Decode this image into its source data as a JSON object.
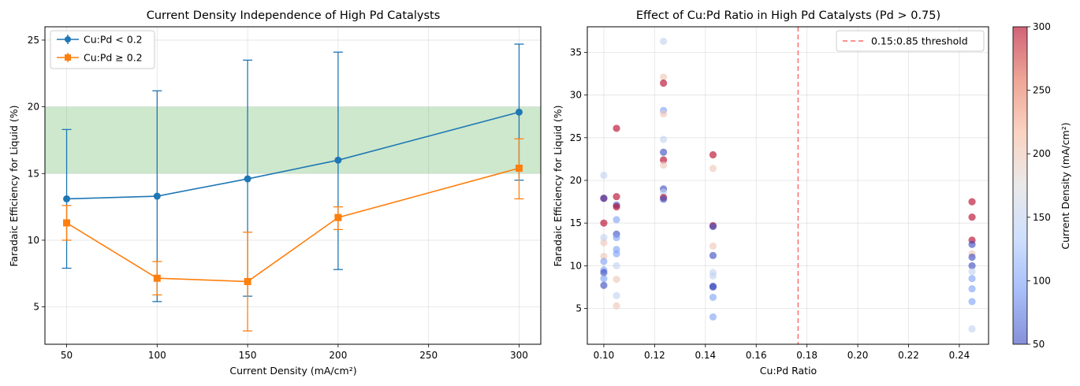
{
  "colors": {
    "blue": "#1f77b4",
    "orange": "#ff7f0e",
    "band": "#2ca02c",
    "threshold": "#ff6b6b",
    "cmap": [
      "#3b4cc0",
      "#7396f5",
      "#b0cbfc",
      "#dddcdc",
      "#f7b89c",
      "#e46e56",
      "#b40426"
    ]
  },
  "chart_data": [
    {
      "type": "line",
      "title": "Current Density Independence of High Pd Catalysts",
      "xlabel": "Current Density (mA/cm²)",
      "ylabel": "Faradaic Efficiency for Liquid (%)",
      "xlim": [
        38,
        312
      ],
      "ylim": [
        2.2,
        26
      ],
      "xticks": [
        50,
        100,
        150,
        200,
        250,
        300
      ],
      "yticks": [
        5,
        10,
        15,
        20,
        25
      ],
      "grid": true,
      "legend_position": "top-left",
      "shaded_band": {
        "y0": 15,
        "y1": 20
      },
      "series": [
        {
          "name": "Cu:Pd < 0.2",
          "marker": "circle",
          "x": [
            50,
            100,
            150,
            200,
            300
          ],
          "y": [
            13.1,
            13.3,
            14.6,
            16.0,
            19.6
          ],
          "err_low": [
            7.9,
            5.4,
            5.8,
            7.8,
            14.5
          ],
          "err_high": [
            18.3,
            21.2,
            23.5,
            24.1,
            24.7
          ]
        },
        {
          "name": "Cu:Pd ≥ 0.2",
          "marker": "square",
          "x": [
            50,
            100,
            150,
            200,
            300
          ],
          "y": [
            11.3,
            7.15,
            6.9,
            11.7,
            15.4
          ],
          "err_low": [
            10.0,
            5.9,
            3.2,
            10.8,
            13.1
          ],
          "err_high": [
            12.6,
            8.4,
            10.6,
            12.5,
            17.6
          ]
        }
      ]
    },
    {
      "type": "scatter",
      "title": "Effect of Cu:Pd Ratio in High Pd Catalysts (Pd > 0.75)",
      "xlabel": "Cu:Pd Ratio",
      "ylabel": "Faradaic Efficiency for Liquid (%)",
      "xlim": [
        0.0935,
        0.2515
      ],
      "ylim": [
        0.8,
        38
      ],
      "xticks": [
        0.1,
        0.12,
        0.14,
        0.16,
        0.18,
        0.2,
        0.22,
        0.24
      ],
      "xtick_labels": [
        "0.10",
        "0.12",
        "0.14",
        "0.16",
        "0.18",
        "0.20",
        "0.22",
        "0.24"
      ],
      "yticks": [
        5,
        10,
        15,
        20,
        25,
        30,
        35
      ],
      "grid": true,
      "threshold": {
        "x": 0.1765,
        "label": "0.15:0.85 threshold"
      },
      "legend_position": "top-right",
      "colorbar": {
        "label": "Current Density (mA/cm²)",
        "range": [
          50,
          300
        ],
        "ticks": [
          50,
          100,
          150,
          200,
          250,
          300
        ]
      },
      "points": [
        [
          0.1,
          17.9,
          300
        ],
        [
          0.1,
          17.9,
          50
        ],
        [
          0.1,
          15.0,
          300
        ],
        [
          0.1,
          12.7,
          200
        ],
        [
          0.1,
          11.1,
          200
        ],
        [
          0.1,
          13.3,
          150
        ],
        [
          0.1,
          10.5,
          100
        ],
        [
          0.1,
          9.5,
          100
        ],
        [
          0.1,
          9.2,
          50
        ],
        [
          0.1,
          8.5,
          100
        ],
        [
          0.1,
          7.7,
          50
        ],
        [
          0.1,
          20.6,
          150
        ],
        [
          0.105,
          26.1,
          300
        ],
        [
          0.105,
          18.1,
          300
        ],
        [
          0.105,
          17.1,
          50
        ],
        [
          0.105,
          16.9,
          300
        ],
        [
          0.105,
          15.4,
          100
        ],
        [
          0.105,
          13.7,
          50
        ],
        [
          0.105,
          13.3,
          100
        ],
        [
          0.105,
          11.9,
          100
        ],
        [
          0.105,
          11.4,
          100
        ],
        [
          0.105,
          10.0,
          150
        ],
        [
          0.105,
          8.4,
          200
        ],
        [
          0.105,
          6.5,
          150
        ],
        [
          0.105,
          5.3,
          200
        ],
        [
          0.1235,
          36.3,
          150
        ],
        [
          0.1235,
          32.1,
          200
        ],
        [
          0.1235,
          31.4,
          300
        ],
        [
          0.1235,
          28.2,
          100
        ],
        [
          0.1235,
          27.8,
          200
        ],
        [
          0.1235,
          24.8,
          150
        ],
        [
          0.1235,
          23.3,
          50
        ],
        [
          0.1235,
          22.4,
          300
        ],
        [
          0.1235,
          21.8,
          200
        ],
        [
          0.1235,
          19.0,
          50
        ],
        [
          0.1235,
          18.6,
          150
        ],
        [
          0.1235,
          18.0,
          300
        ],
        [
          0.1235,
          17.8,
          50
        ],
        [
          0.143,
          23.0,
          300
        ],
        [
          0.143,
          21.4,
          200
        ],
        [
          0.143,
          14.7,
          300
        ],
        [
          0.143,
          14.6,
          50
        ],
        [
          0.143,
          12.3,
          200
        ],
        [
          0.143,
          11.2,
          50
        ],
        [
          0.143,
          9.2,
          150
        ],
        [
          0.143,
          8.8,
          150
        ],
        [
          0.143,
          7.6,
          50
        ],
        [
          0.143,
          7.5,
          50
        ],
        [
          0.143,
          6.3,
          100
        ],
        [
          0.143,
          4.0,
          100
        ],
        [
          0.245,
          17.5,
          300
        ],
        [
          0.245,
          15.7,
          300
        ],
        [
          0.245,
          13.0,
          300
        ],
        [
          0.245,
          12.5,
          50
        ],
        [
          0.245,
          11.4,
          200
        ],
        [
          0.245,
          11.0,
          50
        ],
        [
          0.245,
          10.0,
          50
        ],
        [
          0.245,
          9.3,
          150
        ],
        [
          0.245,
          8.5,
          100
        ],
        [
          0.245,
          7.3,
          100
        ],
        [
          0.245,
          5.8,
          100
        ],
        [
          0.245,
          2.6,
          150
        ]
      ]
    }
  ]
}
